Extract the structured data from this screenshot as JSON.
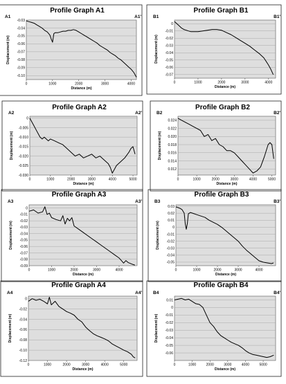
{
  "chart_data": [
    {
      "type": "line",
      "title": "Profile Graph A1",
      "start_label": "A1",
      "end_label": "A1'",
      "xlabel": "Distance (m)",
      "ylabel": "Displacement (m)",
      "xlim": [
        0,
        4200
      ],
      "ylim": [
        -0.105,
        -0.03
      ],
      "xticks": [
        0,
        1000,
        2000,
        3000,
        4000
      ],
      "yticks": [
        -0.03,
        -0.04,
        -0.05,
        -0.06,
        -0.07,
        -0.08,
        -0.09,
        -0.1
      ],
      "ytick_labels": [
        "-0.03",
        "-0.04",
        "-0.05",
        "-0.06",
        "-0.07",
        "-0.08",
        "-0.09",
        "-0.10"
      ],
      "grid": true,
      "x": [
        0,
        100,
        200,
        300,
        400,
        500,
        600,
        700,
        800,
        900,
        950,
        1000,
        1050,
        1100,
        1200,
        1300,
        1400,
        1500,
        1600,
        1700,
        1800,
        1900,
        2000,
        2100,
        2200,
        2300,
        2400,
        2500,
        2600,
        2700,
        2800,
        2900,
        3000,
        3100,
        3200,
        3300,
        3400,
        3500,
        3600,
        3700,
        3800,
        3900,
        4000,
        4050,
        4100,
        4150,
        4200
      ],
      "y": [
        -0.031,
        -0.032,
        -0.033,
        -0.034,
        -0.036,
        -0.038,
        -0.04,
        -0.043,
        -0.045,
        -0.049,
        -0.054,
        -0.058,
        -0.047,
        -0.046,
        -0.046,
        -0.045,
        -0.044,
        -0.044,
        -0.043,
        -0.043,
        -0.042,
        -0.043,
        -0.045,
        -0.047,
        -0.049,
        -0.051,
        -0.053,
        -0.055,
        -0.057,
        -0.059,
        -0.062,
        -0.064,
        -0.066,
        -0.068,
        -0.071,
        -0.073,
        -0.075,
        -0.078,
        -0.08,
        -0.083,
        -0.086,
        -0.089,
        -0.092,
        -0.094,
        -0.096,
        -0.099,
        -0.102
      ]
    },
    {
      "type": "line",
      "title": "Profile Graph B1",
      "start_label": "B1",
      "end_label": "B1'",
      "xlabel": "Distance (m)",
      "ylabel": "Displacement (m)",
      "xlim": [
        0,
        4300
      ],
      "ylim": [
        -0.075,
        0.005
      ],
      "xticks": [
        0,
        1000,
        2000,
        3000,
        4000
      ],
      "yticks": [
        0,
        -0.01,
        -0.02,
        -0.03,
        -0.04,
        -0.05,
        -0.06,
        -0.07
      ],
      "ytick_labels": [
        "0",
        "-0.01",
        "-0.02",
        "-0.03",
        "-0.04",
        "-0.05",
        "-0.06",
        "-0.07"
      ],
      "grid": true,
      "x": [
        0,
        100,
        200,
        300,
        400,
        500,
        600,
        700,
        800,
        1000,
        1200,
        1400,
        1600,
        1800,
        2000,
        2200,
        2400,
        2600,
        2800,
        3000,
        3200,
        3400,
        3600,
        3800,
        3900,
        4000,
        4100,
        4200
      ],
      "y": [
        0.003,
        0.0,
        -0.003,
        -0.006,
        -0.008,
        -0.009,
        -0.01,
        -0.011,
        -0.011,
        -0.011,
        -0.01,
        -0.009,
        -0.008,
        -0.008,
        -0.009,
        -0.012,
        -0.015,
        -0.019,
        -0.023,
        -0.027,
        -0.031,
        -0.036,
        -0.041,
        -0.047,
        -0.052,
        -0.057,
        -0.063,
        -0.07
      ]
    },
    {
      "type": "line",
      "title": "Profile Graph A2",
      "start_label": "A2",
      "end_label": "A2'",
      "xlabel": "Distance (m)",
      "ylabel": "Displacement (m)",
      "xlim": [
        0,
        5200
      ],
      "ylim": [
        -0.03,
        0.001
      ],
      "xticks": [
        0,
        1000,
        2000,
        3000,
        4000,
        5000
      ],
      "yticks": [
        0,
        -0.005,
        -0.01,
        -0.015,
        -0.02,
        -0.025,
        -0.03
      ],
      "ytick_labels": [
        "0",
        "-0.005",
        "-0.010",
        "-0.015",
        "-0.020",
        "-0.025",
        "-0.030"
      ],
      "grid": true,
      "x": [
        0,
        100,
        200,
        300,
        400,
        500,
        600,
        700,
        800,
        900,
        1000,
        1200,
        1400,
        1600,
        1800,
        2000,
        2200,
        2400,
        2600,
        2800,
        3000,
        3200,
        3400,
        3600,
        3800,
        3900,
        4000,
        4100,
        4200,
        4400,
        4600,
        4800,
        4900,
        5000,
        5100
      ],
      "y": [
        0.0,
        -0.002,
        -0.004,
        -0.006,
        -0.008,
        -0.01,
        -0.011,
        -0.01,
        -0.011,
        -0.012,
        -0.011,
        -0.012,
        -0.013,
        -0.014,
        -0.016,
        -0.018,
        -0.02,
        -0.019,
        -0.021,
        -0.02,
        -0.019,
        -0.021,
        -0.02,
        -0.022,
        -0.024,
        -0.026,
        -0.029,
        -0.027,
        -0.025,
        -0.023,
        -0.021,
        -0.018,
        -0.016,
        -0.015,
        -0.019
      ]
    },
    {
      "type": "line",
      "title": "Profile Graph B2",
      "start_label": "B2",
      "end_label": "B2'",
      "xlabel": "Distance (m)",
      "ylabel": "Displacement (m)",
      "xlim": [
        0,
        5200
      ],
      "ylim": [
        0.0105,
        0.025
      ],
      "xticks": [
        0,
        1000,
        2000,
        3000,
        4000,
        5000
      ],
      "yticks": [
        0.024,
        0.022,
        0.02,
        0.018,
        0.016,
        0.014,
        0.012
      ],
      "ytick_labels": [
        "0.024",
        "0.022",
        "0.020",
        "0.018",
        "0.016",
        "0.014",
        "0.012"
      ],
      "grid": true,
      "x": [
        0,
        200,
        400,
        600,
        800,
        1000,
        1200,
        1400,
        1600,
        1800,
        2000,
        2200,
        2400,
        2600,
        2800,
        3000,
        3200,
        3400,
        3600,
        3800,
        4000,
        4200,
        4400,
        4600,
        4800,
        4900,
        5000,
        5100
      ],
      "y": [
        0.0245,
        0.024,
        0.0235,
        0.023,
        0.0225,
        0.022,
        0.0215,
        0.02,
        0.0205,
        0.019,
        0.0195,
        0.018,
        0.0175,
        0.0165,
        0.0165,
        0.016,
        0.015,
        0.014,
        0.013,
        0.012,
        0.011,
        0.0115,
        0.0125,
        0.015,
        0.018,
        0.0185,
        0.018,
        0.0145
      ]
    },
    {
      "type": "line",
      "title": "Profile Graph A3",
      "start_label": "A3",
      "end_label": "A3'",
      "xlabel": "Distance (m)",
      "ylabel": "Displacement (m)",
      "xlim": [
        0,
        4800
      ],
      "ylim": [
        -0.09,
        0.005
      ],
      "xticks": [
        0,
        1000,
        2000,
        3000,
        4000
      ],
      "yticks": [
        0,
        -0.01,
        -0.02,
        -0.03,
        -0.04,
        -0.05,
        -0.06,
        -0.07,
        -0.08,
        -0.09
      ],
      "ytick_labels": [
        "0",
        "-0.01",
        "-0.02",
        "-0.03",
        "-0.04",
        "-0.05",
        "-0.06",
        "-0.07",
        "-0.08",
        "-0.09"
      ],
      "grid": true,
      "x": [
        0,
        200,
        400,
        600,
        700,
        800,
        900,
        1000,
        1200,
        1400,
        1500,
        1600,
        1700,
        1800,
        1900,
        2000,
        2200,
        2400,
        2600,
        2800,
        3000,
        3200,
        3400,
        3600,
        3800,
        4000,
        4100,
        4200,
        4300,
        4400,
        4600,
        4700
      ],
      "y": [
        -0.005,
        -0.003,
        -0.008,
        -0.006,
        0.002,
        -0.01,
        -0.008,
        -0.015,
        -0.018,
        -0.02,
        -0.012,
        -0.025,
        -0.016,
        -0.02,
        -0.015,
        -0.028,
        -0.033,
        -0.038,
        -0.043,
        -0.048,
        -0.053,
        -0.058,
        -0.063,
        -0.068,
        -0.073,
        -0.078,
        -0.082,
        -0.086,
        -0.082,
        -0.085,
        -0.088,
        -0.089
      ]
    },
    {
      "type": "line",
      "title": "Profile Graph B3",
      "start_label": "B3",
      "end_label": "B3'",
      "xlabel": "Distance (m)",
      "ylabel": "Displacement (m)",
      "xlim": [
        0,
        4800
      ],
      "ylim": [
        -0.055,
        0.032
      ],
      "xticks": [
        0,
        1000,
        2000,
        3000,
        4000
      ],
      "yticks": [
        0.03,
        0.02,
        0.01,
        0,
        -0.01,
        -0.02,
        -0.03,
        -0.04,
        -0.05
      ],
      "ytick_labels": [
        "0.03",
        "0.02",
        "0.01",
        "0",
        "-0.01",
        "-0.02",
        "-0.03",
        "-0.04",
        "-0.05"
      ],
      "grid": true,
      "x": [
        0,
        100,
        200,
        300,
        400,
        450,
        500,
        550,
        600,
        700,
        800,
        1000,
        1200,
        1400,
        1600,
        1800,
        2000,
        2200,
        2400,
        2600,
        2800,
        3000,
        3200,
        3400,
        3600,
        3800,
        4000,
        4200,
        4400,
        4600,
        4700
      ],
      "y": [
        0.029,
        0.028,
        0.027,
        0.025,
        0.02,
        0.005,
        -0.003,
        0.005,
        0.019,
        0.021,
        0.02,
        0.018,
        0.016,
        0.014,
        0.01,
        0.007,
        0.004,
        0.0,
        -0.005,
        -0.01,
        -0.015,
        -0.02,
        -0.027,
        -0.033,
        -0.038,
        -0.043,
        -0.048,
        -0.05,
        -0.051,
        -0.052,
        -0.051
      ]
    },
    {
      "type": "line",
      "title": "Profile Graph A4",
      "start_label": "A4",
      "end_label": "A4'",
      "xlabel": "Distance (m)",
      "ylabel": "Displacement (m)",
      "xlim": [
        0,
        5700
      ],
      "ylim": [
        -0.12,
        0.005
      ],
      "xticks": [
        0,
        1000,
        2000,
        3000,
        4000,
        5000
      ],
      "yticks": [
        0,
        -0.02,
        -0.04,
        -0.06,
        -0.08,
        -0.1,
        -0.12
      ],
      "ytick_labels": [
        "0",
        "-0.02",
        "-0.04",
        "-0.06",
        "-0.08",
        "-0.10",
        "-0.12"
      ],
      "grid": true,
      "x": [
        0,
        200,
        400,
        600,
        800,
        1000,
        1100,
        1200,
        1400,
        1600,
        1800,
        2000,
        2200,
        2400,
        2600,
        2800,
        3000,
        3200,
        3400,
        3600,
        3800,
        4000,
        4200,
        4400,
        4600,
        4800,
        5000,
        5200,
        5400,
        5500,
        5600
      ],
      "y": [
        -0.005,
        0.0,
        -0.003,
        -0.001,
        -0.005,
        -0.01,
        0.003,
        -0.012,
        -0.005,
        -0.015,
        -0.02,
        -0.025,
        -0.028,
        -0.032,
        -0.04,
        -0.045,
        -0.055,
        -0.062,
        -0.068,
        -0.072,
        -0.075,
        -0.078,
        -0.082,
        -0.088,
        -0.092,
        -0.096,
        -0.1,
        -0.103,
        -0.108,
        -0.113,
        -0.115
      ]
    },
    {
      "type": "line",
      "title": "Profile Graph B4",
      "start_label": "B4",
      "end_label": "B4'",
      "xlabel": "Distance (m)",
      "ylabel": "Displacement (m)",
      "xlim": [
        0,
        5700
      ],
      "ylim": [
        -0.07,
        0.015
      ],
      "xticks": [
        0,
        1000,
        2000,
        3000,
        4000,
        5000
      ],
      "yticks": [
        0.01,
        0,
        -0.01,
        -0.02,
        -0.03,
        -0.04,
        -0.05,
        -0.06
      ],
      "ytick_labels": [
        "0.01",
        "0",
        "-0.01",
        "-0.02",
        "-0.03",
        "-0.04",
        "-0.05",
        "-0.06"
      ],
      "grid": true,
      "x": [
        0,
        200,
        400,
        600,
        800,
        1000,
        1200,
        1400,
        1600,
        1800,
        2000,
        2200,
        2400,
        2600,
        2800,
        3000,
        3200,
        3400,
        3600,
        3800,
        4000,
        4200,
        4400,
        4600,
        4800,
        5000,
        5200,
        5400,
        5600
      ],
      "y": [
        0.01,
        0.011,
        0.012,
        0.01,
        0.011,
        0.008,
        0.005,
        0.004,
        0.0,
        -0.01,
        -0.02,
        -0.025,
        -0.032,
        -0.037,
        -0.04,
        -0.043,
        -0.046,
        -0.048,
        -0.05,
        -0.053,
        -0.057,
        -0.06,
        -0.062,
        -0.063,
        -0.064,
        -0.065,
        -0.066,
        -0.065,
        -0.063
      ]
    }
  ]
}
